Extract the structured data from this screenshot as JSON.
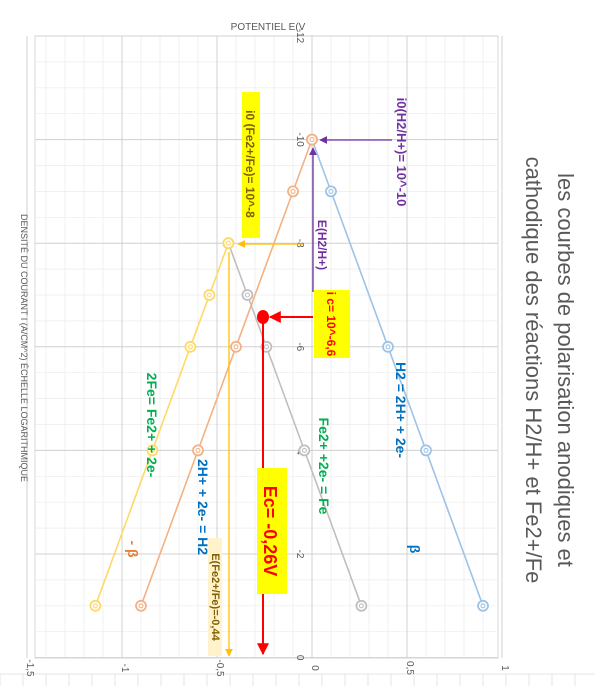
{
  "chart_data": {
    "type": "scatter",
    "title": "les courbes de polarisation anodiques et cathodique des réactions H2/H+ et Fe2+/Fe",
    "xlabel": "DENSITÉ DU COURANT I (A/CM^2) ÉCHELLE LOGARITHMIQUE",
    "ylabel": "POTENTIEL E(V",
    "xlim": [
      -12,
      0
    ],
    "ylim": [
      -1.5,
      1
    ],
    "x_ticks": [
      "-12",
      "-10",
      "-8",
      "-6",
      "-4",
      "-2",
      "0"
    ],
    "y_ticks": [
      "-1,5",
      "-1",
      "-0,5",
      "0",
      "0,5",
      "1"
    ],
    "grid": true,
    "series": [
      {
        "name": "H2 = 2H+ + 2e-",
        "color": "#9DC3E6",
        "x": [
          -10,
          -9,
          -6,
          -4,
          -1
        ],
        "y": [
          0,
          0.1,
          0.4,
          0.6,
          0.9
        ]
      },
      {
        "name": "2H+ + 2e- = H2",
        "color": "#F4B183",
        "x": [
          -10,
          -9,
          -6,
          -4,
          -1
        ],
        "y": [
          0,
          -0.1,
          -0.4,
          -0.6,
          -0.9
        ]
      },
      {
        "name": "Fe2+ +2e- = Fe",
        "color": "#BFBFBF",
        "x": [
          -8,
          -7,
          -6,
          -4,
          -1
        ],
        "y": [
          -0.44,
          -0.34,
          -0.24,
          -0.04,
          0.26
        ]
      },
      {
        "name": "2Fe= Fe2+ + 2e-",
        "color": "#FFD966",
        "x": [
          -8,
          -7,
          -6,
          -4,
          -1
        ],
        "y": [
          -0.44,
          -0.54,
          -0.64,
          -0.84,
          -1.14
        ]
      }
    ],
    "annotations": {
      "i0_h2": "i0(H2/H+)= 10^-10",
      "i0_fe": "i0 (Fe2+/Fe)= 10^-8",
      "e_h2": "E(H2/H+)",
      "ic": "i c= 10^-6,6",
      "ec": "Ec= -0,26V",
      "e_fe": "E(Fe2+/Fe)=-0,44",
      "beta": "β",
      "minus_beta": "- β"
    },
    "colors": {
      "purple": "#7030A0",
      "red": "#FF0000",
      "green": "#00B050",
      "blue": "#0070C0",
      "yellow_fill": "#FFFF00",
      "fe_text": "#806000",
      "orange": "#ED7D31"
    }
  }
}
